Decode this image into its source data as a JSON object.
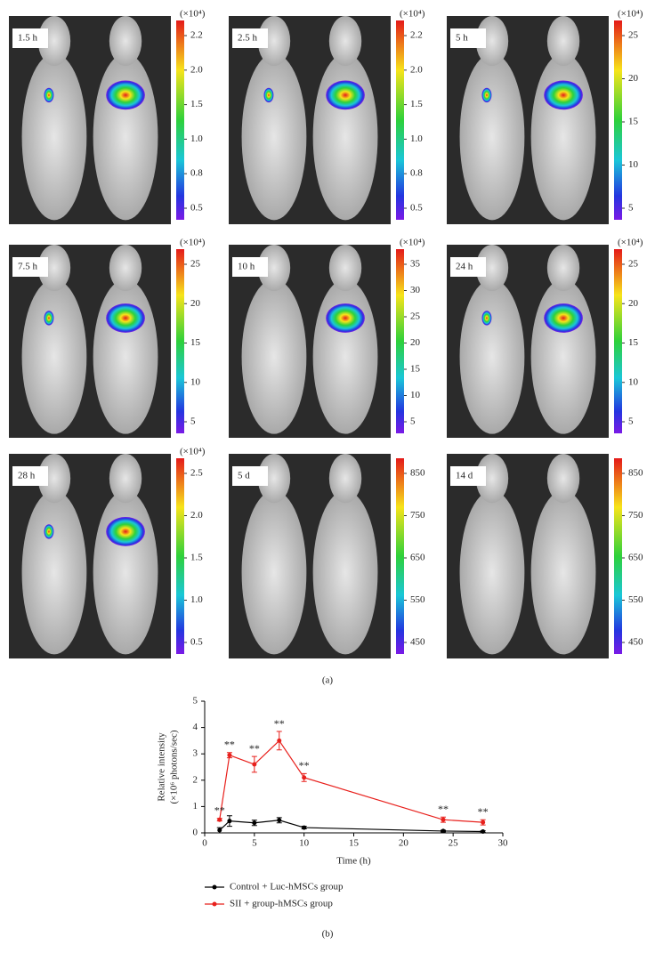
{
  "panel_a": {
    "label": "(a)",
    "images": [
      {
        "time": "1.5 h",
        "unit": "(×10⁴)",
        "ticks": [
          "2.2",
          "2.0",
          "1.5",
          "1.0",
          "0.8",
          "0.5"
        ]
      },
      {
        "time": "2.5 h",
        "unit": "(×10⁴)",
        "ticks": [
          "2.2",
          "2.0",
          "1.5",
          "1.0",
          "0.8",
          "0.5"
        ]
      },
      {
        "time": "5 h",
        "unit": "(×10⁴)",
        "ticks": [
          "25",
          "20",
          "15",
          "10",
          "5"
        ]
      },
      {
        "time": "7.5 h",
        "unit": "(×10⁴)",
        "ticks": [
          "25",
          "20",
          "15",
          "10",
          "5"
        ]
      },
      {
        "time": "10 h",
        "unit": "(×10⁴)",
        "ticks": [
          "35",
          "30",
          "25",
          "20",
          "15",
          "10",
          "5"
        ]
      },
      {
        "time": "24 h",
        "unit": "(×10⁴)",
        "ticks": [
          "25",
          "20",
          "15",
          "10",
          "5"
        ]
      },
      {
        "time": "28 h",
        "unit": "(×10⁴)",
        "ticks": [
          "2.5",
          "2.0",
          "1.5",
          "1.0",
          "0.5"
        ]
      },
      {
        "time": "5 d",
        "ticks": [
          "850",
          "750",
          "650",
          "550",
          "450"
        ]
      },
      {
        "time": "14 d",
        "ticks": [
          "850",
          "750",
          "650",
          "550",
          "450"
        ]
      }
    ]
  },
  "panel_b_label": "(b)",
  "chart_data": {
    "type": "line",
    "x_label": "Time (h)",
    "y_label": [
      "Relative intensity",
      "(×10⁶ photons/sec)"
    ],
    "x": [
      1.5,
      2.5,
      5,
      7.5,
      10,
      24,
      28
    ],
    "series": [
      {
        "name": "Control + Luc-hMSCs group",
        "color": "#000000",
        "values": [
          0.1,
          0.45,
          0.38,
          0.48,
          0.2,
          0.07,
          0.05
        ],
        "errors": [
          0.1,
          0.2,
          0.1,
          0.1,
          0.05,
          0.03,
          0.03
        ]
      },
      {
        "name": "SII + group-hMSCs group",
        "color": "#e8201c",
        "values": [
          0.5,
          2.95,
          2.6,
          3.5,
          2.1,
          0.5,
          0.4
        ],
        "errors": [
          0.05,
          0.1,
          0.3,
          0.35,
          0.15,
          0.1,
          0.1
        ],
        "annotations": [
          "**",
          "**",
          "**",
          "**",
          "**",
          "**",
          "**"
        ]
      }
    ],
    "xlim": [
      0,
      30
    ],
    "xticks": [
      0,
      5,
      10,
      15,
      20,
      25,
      30
    ],
    "ylim": [
      0,
      5
    ],
    "yticks": [
      0,
      1,
      2,
      3,
      4,
      5
    ]
  }
}
